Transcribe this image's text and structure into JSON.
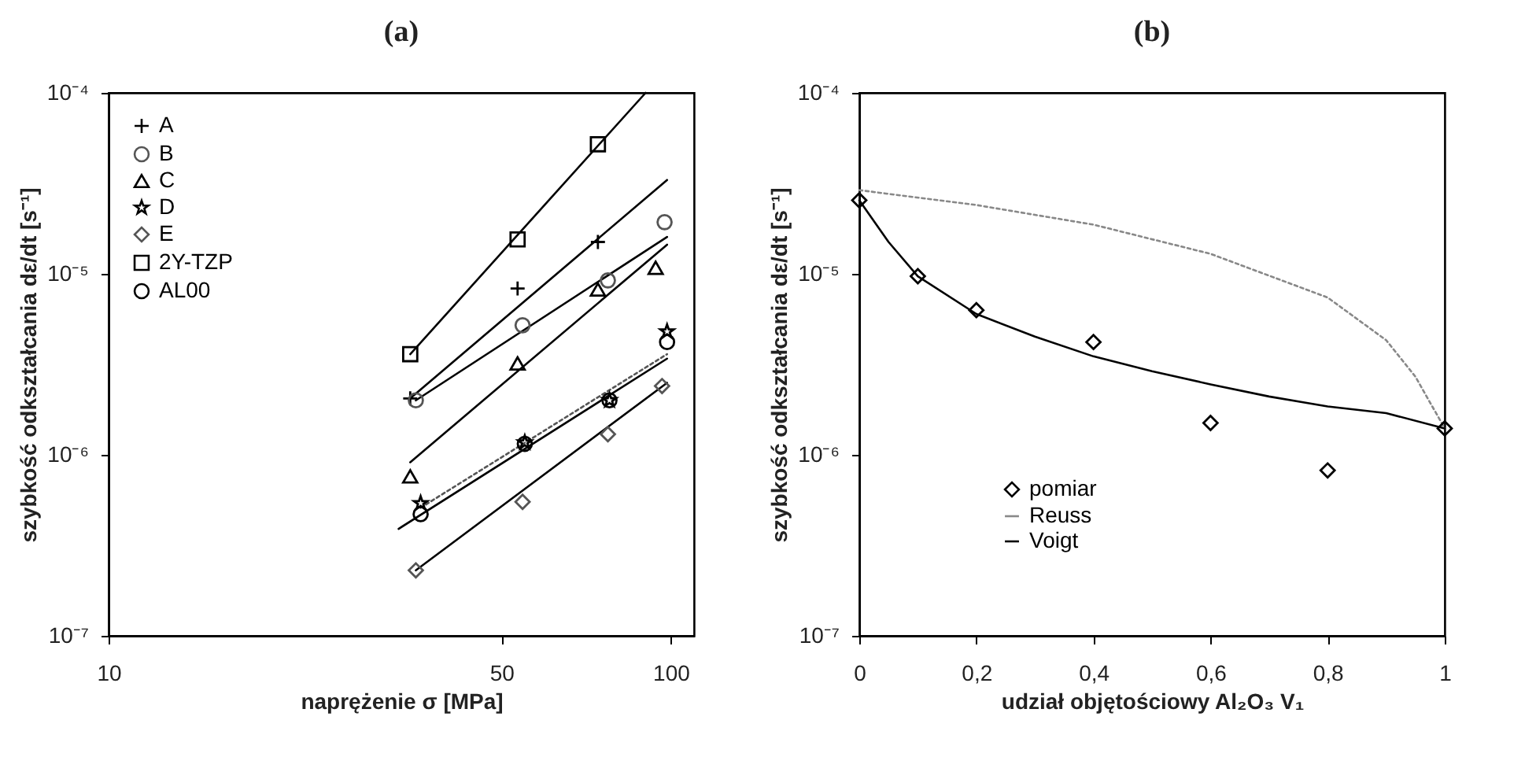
{
  "chart_data": [
    {
      "type": "scatter",
      "title": "(a)",
      "xlabel": "naprężenie σ [MPa]",
      "ylabel": "szybkość odkształcania dε/dt [s⁻¹]",
      "log": "xy",
      "xlim": [
        10,
        110
      ],
      "xticks": [
        10,
        50,
        100
      ],
      "ylim": [
        1e-07,
        0.0001
      ],
      "yticks": [
        {
          "value": 1e-07,
          "label": "10⁻⁷"
        },
        {
          "value": 1e-06,
          "label": "10⁻⁶"
        },
        {
          "value": 1e-05,
          "label": "10⁻⁵"
        },
        {
          "value": 0.0001,
          "label": "10⁻⁴"
        }
      ],
      "legend": "top left",
      "series": [
        {
          "name": "A",
          "type": "scatter",
          "marker": "cross",
          "color": "#000000",
          "x": [
            34.4,
            53.4,
            74.2
          ],
          "values": [
            2.05e-06,
            8.3e-06,
            1.5e-05
          ]
        },
        {
          "name": "B",
          "type": "scatter",
          "marker": "circle",
          "color": "#555555",
          "x": [
            35.2,
            54.5,
            77.3,
            97.5
          ],
          "values": [
            2e-06,
            5.2e-06,
            9.2e-06,
            1.93e-05
          ]
        },
        {
          "name": "C",
          "type": "scatter",
          "marker": "triangle",
          "color": "#000000",
          "x": [
            34.4,
            53.4,
            74.2,
            94
          ],
          "values": [
            7.6e-07,
            3.2e-06,
            8.2e-06,
            1.08e-05
          ]
        },
        {
          "name": "D",
          "type": "scatter",
          "marker": "star",
          "color": "#000000",
          "x": [
            35.9,
            55,
            77.8,
            98.5
          ],
          "values": [
            5.4e-07,
            1.17e-06,
            2e-06,
            4.8e-06
          ]
        },
        {
          "name": "E",
          "type": "scatter",
          "marker": "diamond",
          "color": "#555555",
          "x": [
            35.2,
            54.5,
            77.3,
            96.5
          ],
          "values": [
            2.3e-07,
            5.5e-07,
            1.3e-06,
            2.4e-06
          ]
        },
        {
          "name": "2Y-TZP",
          "type": "scatter",
          "marker": "square",
          "color": "#000000",
          "x": [
            34.4,
            53.4,
            74.2
          ],
          "values": [
            3.6e-06,
            1.55e-05,
            5.2e-05
          ]
        },
        {
          "name": "AL00",
          "type": "scatter",
          "marker": "circle",
          "color": "#000000",
          "x": [
            35.9,
            55,
            77.8,
            98.5
          ],
          "values": [
            4.7e-07,
            1.15e-06,
            2e-06,
            4.2e-06
          ]
        },
        {
          "type": "line",
          "color": "#000000",
          "line_style": "solid",
          "x": [
            34.4,
            90.2
          ],
          "values": [
            3.6e-06,
            0.0001
          ]
        },
        {
          "type": "line",
          "color": "#000000",
          "line_style": "solid",
          "x": [
            34.4,
            98.5
          ],
          "values": [
            2.05e-06,
            3.3e-05
          ]
        },
        {
          "type": "line",
          "color": "#000000",
          "line_style": "solid",
          "x": [
            35.2,
            98.5
          ],
          "values": [
            2e-06,
            1.6e-05
          ]
        },
        {
          "type": "line",
          "color": "#000000",
          "line_style": "solid",
          "x": [
            34.4,
            98.5
          ],
          "values": [
            9.1e-07,
            1.45e-05
          ]
        },
        {
          "type": "line",
          "color": "#555555",
          "line_style": "dotted",
          "x": [
            35.9,
            98.5
          ],
          "values": [
            5.1e-07,
            3.6e-06
          ]
        },
        {
          "type": "line",
          "color": "#000000",
          "line_style": "solid",
          "x": [
            32.8,
            98.5
          ],
          "values": [
            3.9e-07,
            3.4e-06
          ]
        },
        {
          "type": "line",
          "color": "#000000",
          "line_style": "solid",
          "x": [
            35.2,
            98.5
          ],
          "values": [
            2.3e-07,
            2.5e-06
          ]
        }
      ]
    },
    {
      "type": "scatter",
      "title": "(b)",
      "xlabel": "udział objętościowy Al₂O₃ V₁",
      "ylabel": "szybkość odkształcania dε/dt [s⁻¹]",
      "log": "y",
      "xlim": [
        0,
        1
      ],
      "xticks": [
        0,
        {
          "value": 0.2,
          "label": "0,2"
        },
        {
          "value": 0.4,
          "label": "0,4"
        },
        {
          "value": 0.6,
          "label": "0,6"
        },
        {
          "value": 0.8,
          "label": "0,8"
        },
        1
      ],
      "ylim": [
        1e-07,
        0.0001
      ],
      "yticks": [
        {
          "value": 1e-07,
          "label": "10⁻⁷"
        },
        {
          "value": 1e-06,
          "label": "10⁻⁶"
        },
        {
          "value": 1e-05,
          "label": "10⁻⁵"
        },
        {
          "value": 0.0001,
          "label": "10⁻⁴"
        }
      ],
      "legend": "bottom left",
      "series": [
        {
          "name": "pomiar",
          "type": "scatter",
          "marker": "diamond",
          "color": "#000000",
          "x": [
            0,
            0.1,
            0.2,
            0.4,
            0.6,
            0.8,
            1
          ],
          "values": [
            2.55e-05,
            9.7e-06,
            6.3e-06,
            4.2e-06,
            1.5e-06,
            8.2e-07,
            1.4e-06
          ]
        },
        {
          "name": "Reuss",
          "type": "line",
          "line_style": "dotted",
          "color": "#888888",
          "x": [
            0,
            0.2,
            0.4,
            0.6,
            0.8,
            0.9,
            0.95,
            1
          ],
          "values": [
            2.9e-05,
            2.4e-05,
            1.87e-05,
            1.29e-05,
            7.4e-06,
            4.3e-06,
            2.7e-06,
            1.4e-06
          ]
        },
        {
          "name": "Voigt",
          "type": "line",
          "line_style": "solid",
          "color": "#000000",
          "x": [
            0,
            0.05,
            0.1,
            0.2,
            0.3,
            0.4,
            0.5,
            0.6,
            0.7,
            0.8,
            0.9,
            1
          ],
          "values": [
            2.55e-05,
            1.5e-05,
            9.7e-06,
            6e-06,
            4.5e-06,
            3.5e-06,
            2.9e-06,
            2.45e-06,
            2.1e-06,
            1.85e-06,
            1.7e-06,
            1.4e-06
          ]
        }
      ]
    }
  ]
}
